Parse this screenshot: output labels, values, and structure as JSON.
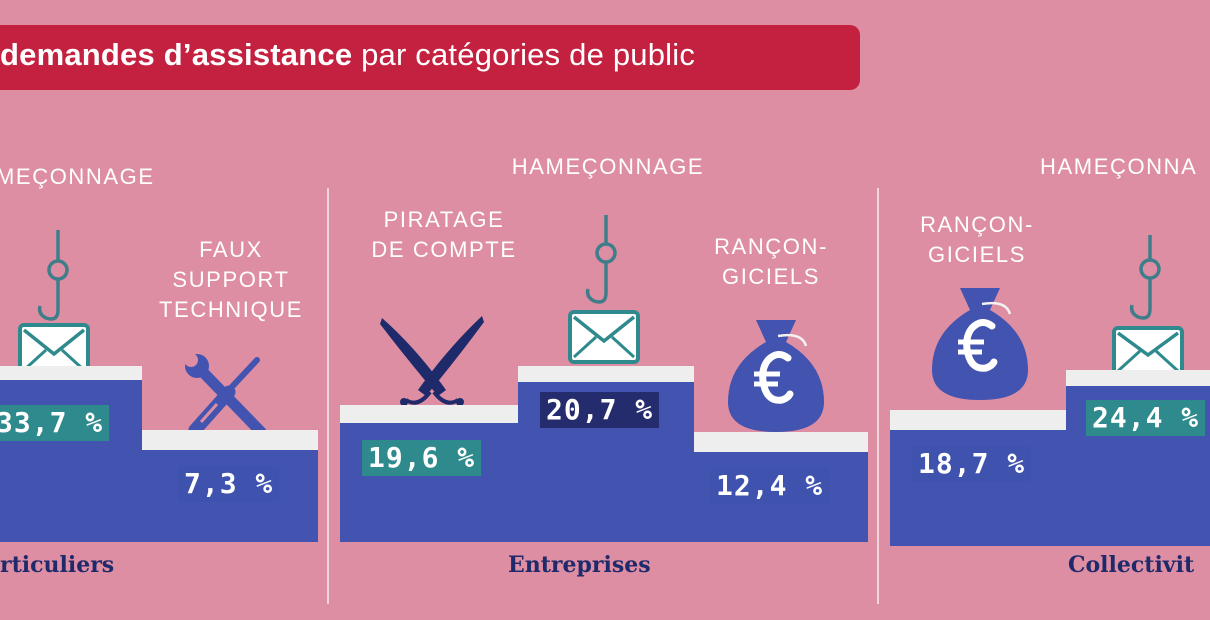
{
  "title": {
    "bold": "demandes d’assistance",
    "rest": " par catégories de public"
  },
  "chart_data": [
    {
      "type": "bar",
      "category": "Particuliers",
      "category_visible_text": "rticuliers",
      "items": [
        {
          "label": "HAMEÇONNAGE",
          "visible_label": "MEÇONNAGE",
          "value": 33.7,
          "value_text": "33,7 %",
          "icon": "phishing-hook-envelope-icon"
        },
        {
          "label": "FAUX SUPPORT TECHNIQUE",
          "value": 7.3,
          "value_text": "7,3 %",
          "icon": "wrench-screwdriver-icon"
        }
      ]
    },
    {
      "type": "bar",
      "category": "Entreprises",
      "items": [
        {
          "label": "PIRATAGE DE COMPTE",
          "value": 19.6,
          "value_text": "19,6 %",
          "icon": "crossed-sabres-icon"
        },
        {
          "label": "HAMEÇONNAGE",
          "value": 20.7,
          "value_text": "20,7 %",
          "icon": "phishing-hook-envelope-icon"
        },
        {
          "label": "RANÇON-GICIELS",
          "value": 12.4,
          "value_text": "12,4 %",
          "icon": "euro-money-bag-icon"
        }
      ]
    },
    {
      "type": "bar",
      "category": "Collectivités",
      "category_visible_text": "Collectivit",
      "items": [
        {
          "label": "RANÇON-GICIELS",
          "value": 18.7,
          "value_text": "18,7 %",
          "icon": "euro-money-bag-icon"
        },
        {
          "label": "HAMEÇONNAGE",
          "visible_label": "HAMEÇONNA",
          "value": 24.4,
          "value_text": "24,4 %",
          "icon": "phishing-hook-envelope-icon"
        }
      ]
    }
  ],
  "colors": {
    "background": "#de8ea2",
    "banner": "#c4203f",
    "podium": "#4253b0",
    "podium_top": "#eeeeee",
    "teal": "#2f8a8d",
    "navy": "#242c6e",
    "icon_fill": "#4253b0",
    "label_text": "#1e2a6b"
  },
  "labels": {
    "p_fishing": "MEÇONNAGE",
    "p_faux_1": "FAUX",
    "p_faux_2": "SUPPORT",
    "p_faux_3": "TECHNIQUE",
    "e_pirat_1": "PIRATAGE",
    "e_pirat_2": "DE COMPTE",
    "e_fishing": "HAMEÇONNAGE",
    "e_ranc_1": "RANÇON-",
    "e_ranc_2": "GICIELS",
    "c_ranc_1": "RANÇON-",
    "c_ranc_2": "GICIELS",
    "c_fishing": "HAMEÇONNA"
  },
  "values": {
    "p1": "33,7 %",
    "p2": "7,3 %",
    "e1": "19,6 %",
    "e2": "20,7 %",
    "e3": "12,4 %",
    "c1": "18,7 %",
    "c2": "24,4 %"
  },
  "categories": {
    "p": "rticuliers",
    "e": "Entreprises",
    "c": "Collectivit"
  }
}
